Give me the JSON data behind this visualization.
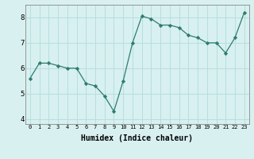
{
  "xlabel": "Humidex (Indice chaleur)",
  "x": [
    0,
    1,
    2,
    3,
    4,
    5,
    6,
    7,
    8,
    9,
    10,
    11,
    12,
    13,
    14,
    15,
    16,
    17,
    18,
    19,
    20,
    21,
    22,
    23
  ],
  "y": [
    5.6,
    6.2,
    6.2,
    6.1,
    6.0,
    6.0,
    5.4,
    5.3,
    4.9,
    4.3,
    5.5,
    7.0,
    8.05,
    7.95,
    7.7,
    7.7,
    7.6,
    7.3,
    7.2,
    7.0,
    7.0,
    6.6,
    7.2,
    8.2
  ],
  "line_color": "#2e7d6e",
  "marker": "D",
  "marker_size": 2.2,
  "bg_color": "#d8f0f0",
  "grid_color": "#b8dede",
  "ylim": [
    3.8,
    8.5
  ],
  "yticks": [
    4,
    5,
    6,
    7,
    8
  ],
  "xlim": [
    -0.5,
    23.5
  ],
  "xtick_fontsize": 5.0,
  "ytick_fontsize": 6.5,
  "xlabel_fontsize": 7.0
}
